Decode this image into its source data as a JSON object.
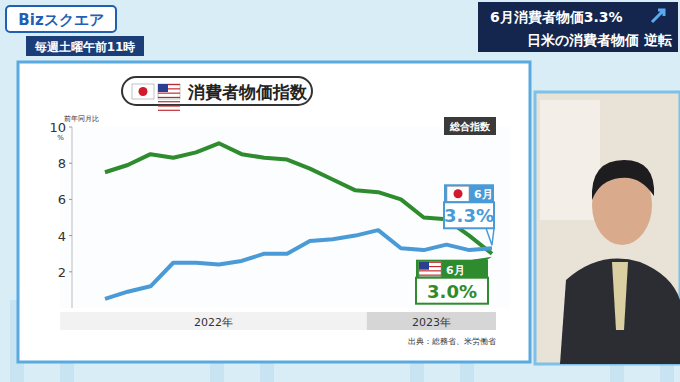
{
  "screen": {
    "logo": "Bizスクエア",
    "schedule": "毎週土曜午前11時",
    "caption_line1": "6月消費者物価3.3%",
    "caption_line2": "日米の消費者物価 逆転"
  },
  "chart_data": {
    "type": "line",
    "title": "消費者物価指数",
    "subtitle": "総合指数",
    "y_label": "前年同月比",
    "y_unit": "%",
    "categories": [
      null,
      null,
      null,
      null,
      null,
      null,
      null,
      null,
      null,
      null,
      null,
      null,
      null,
      null,
      null,
      null,
      null,
      null
    ],
    "periods": [
      {
        "label": "2022年",
        "start": 0,
        "end": 11
      },
      {
        "label": "2023年",
        "start": 12,
        "end": 17
      }
    ],
    "series": [
      {
        "color": "#4a9ad8",
        "values": [
          0.5,
          0.9,
          1.2,
          2.5,
          2.5,
          2.4,
          2.6,
          3.0,
          3.0,
          3.7,
          3.8,
          4.0,
          4.3,
          3.3,
          3.2,
          3.5,
          3.2,
          3.3
        ],
        "callout": {
          "label": "6月",
          "text": "3.3%"
        }
      },
      {
        "color": "#2e8b2e",
        "values": [
          7.5,
          7.9,
          8.5,
          8.3,
          8.6,
          9.1,
          8.5,
          8.3,
          8.2,
          7.7,
          7.1,
          6.5,
          6.4,
          6.0,
          5.0,
          4.9,
          4.0,
          3.0
        ],
        "callout": {
          "label": "6月",
          "text": "3.0%"
        }
      }
    ],
    "ylim": [
      0,
      10
    ],
    "yticks": [
      2,
      4,
      6,
      8,
      10
    ],
    "grid": false,
    "source": "出典：総務省、米労働省"
  }
}
